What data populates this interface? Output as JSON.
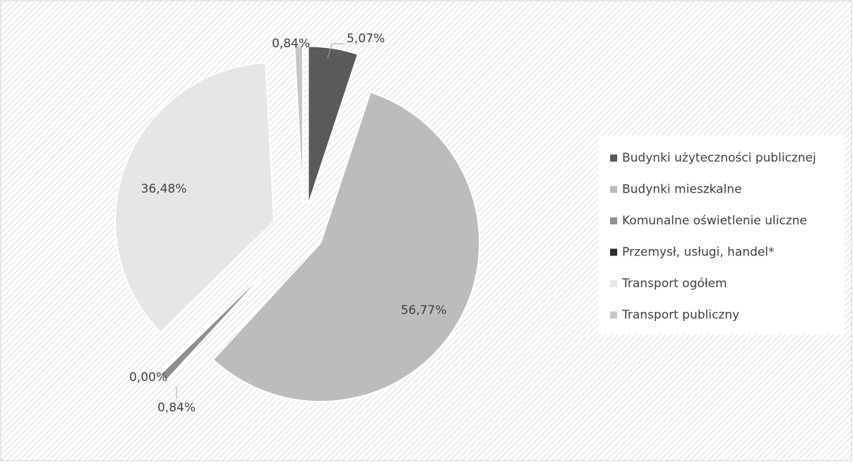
{
  "chart_data": {
    "type": "pie",
    "categories": [
      "Budynki użyteczności publicznej",
      "Budynki mieszkalne",
      "Komunalne oświetlenie uliczne",
      "Przemysł, usługi, handel*",
      "Transport ogółem",
      "Transport publiczny"
    ],
    "values": [
      5.07,
      56.77,
      0.84,
      0.0,
      36.48,
      0.84
    ],
    "value_labels": [
      "5,07%",
      "56,77%",
      "0,84%",
      "0,00%",
      "36,48%",
      "0,84%"
    ],
    "colors": [
      "#5a5a5a",
      "#bcbcbc",
      "#8e8e8e",
      "#2b2b2b",
      "#e6e6e6",
      "#c6c6c6"
    ],
    "legend": "right"
  }
}
